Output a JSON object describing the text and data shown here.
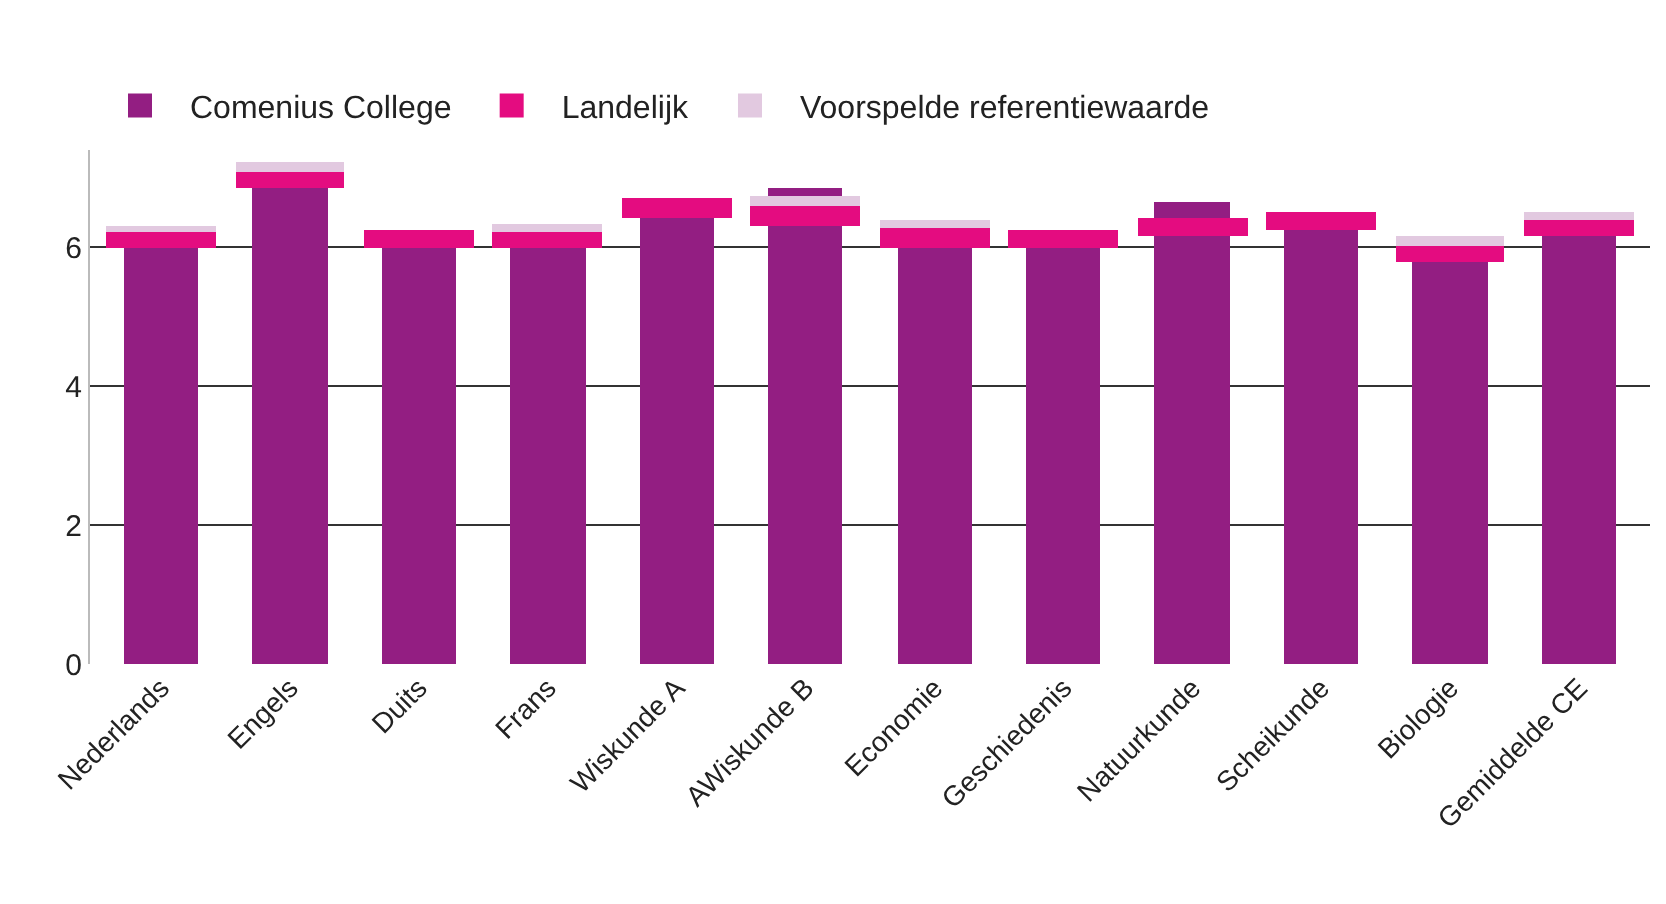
{
  "chart_data": {
    "type": "bar",
    "categories": [
      "Nederlands",
      "Engels",
      "Duits",
      "Frans",
      "Wiskunde A",
      "AWiskunde B",
      "Economie",
      "Geschiedenis",
      "Natuurkunde",
      "Scheikunde",
      "Biologie",
      "Gemiddelde CE"
    ],
    "series": [
      {
        "name": "Comenius College",
        "color": "#931e82",
        "values": [
          5.98,
          6.85,
          5.98,
          5.98,
          6.42,
          6.85,
          6.0,
          5.98,
          6.64,
          6.24,
          5.79,
          6.15
        ]
      },
      {
        "name": "Landelijk",
        "color": "#e40c80",
        "base": [
          5.98,
          6.85,
          5.98,
          5.98,
          6.42,
          6.3,
          6.0,
          5.98,
          6.15,
          6.24,
          5.79,
          6.15
        ],
        "values": [
          0.23,
          0.24,
          0.26,
          0.23,
          0.28,
          0.28,
          0.27,
          0.26,
          0.27,
          0.28,
          0.24,
          0.24
        ]
      },
      {
        "name": "Voorspelde referentiewaarde",
        "color": "#e2c9e0",
        "base": [
          6.21,
          7.09,
          null,
          6.21,
          null,
          6.58,
          6.27,
          null,
          null,
          null,
          6.03,
          6.39
        ],
        "values": [
          0.09,
          0.15,
          null,
          0.12,
          null,
          0.15,
          0.12,
          null,
          null,
          null,
          0.12,
          0.13
        ]
      }
    ],
    "ylim": [
      0,
      7.4
    ],
    "yticks": [
      0,
      2,
      4,
      6
    ],
    "grid": "y",
    "legend": "top left"
  }
}
